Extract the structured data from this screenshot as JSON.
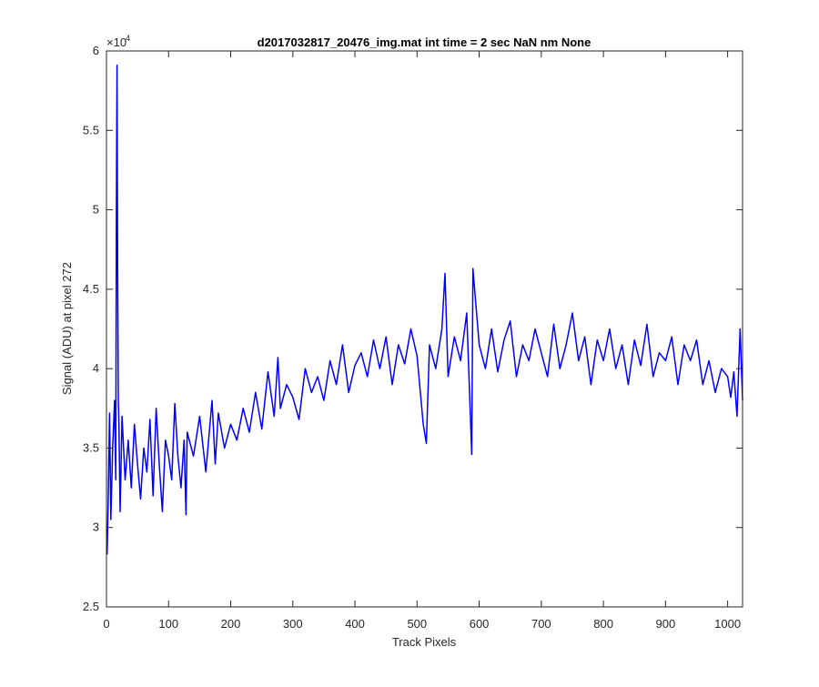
{
  "chart_data": {
    "type": "line",
    "title": "d2017032817_20476_img.mat int time = 2 sec  NaN nm None",
    "xlabel": "Track Pixels",
    "ylabel": "Signal (ADU) at pixel 272",
    "xlim": [
      0,
      1024
    ],
    "ylim": [
      25000,
      60000
    ],
    "xticks": [
      0,
      100,
      200,
      300,
      400,
      500,
      600,
      700,
      800,
      900,
      1000
    ],
    "xtick_labels": [
      "0",
      "100",
      "200",
      "300",
      "400",
      "500",
      "600",
      "700",
      "800",
      "900",
      "1000"
    ],
    "yticks": [
      25000,
      30000,
      35000,
      40000,
      45000,
      50000,
      55000,
      60000
    ],
    "ytick_labels": [
      "2.5",
      "3",
      "3.5",
      "4",
      "4.5",
      "5",
      "5.5",
      "6"
    ],
    "y_exponent": {
      "base": "×10",
      "power": "4"
    },
    "grid": false,
    "series_color": "#0000ff",
    "series": [
      {
        "x": [
          1,
          3,
          5,
          7,
          10,
          13,
          15,
          16,
          17,
          18,
          19,
          20,
          22,
          25,
          30,
          35,
          40,
          45,
          50,
          55,
          60,
          65,
          70,
          75,
          80,
          85,
          90,
          95,
          100,
          105,
          110,
          115,
          120,
          125,
          128,
          130,
          140,
          150,
          160,
          170,
          175,
          180,
          190,
          200,
          210,
          220,
          230,
          240,
          250,
          260,
          270,
          276,
          280,
          290,
          300,
          310,
          320,
          330,
          340,
          350,
          360,
          370,
          380,
          390,
          400,
          410,
          420,
          430,
          440,
          450,
          460,
          470,
          480,
          490,
          500,
          510,
          515,
          520,
          530,
          540,
          545,
          550,
          560,
          570,
          580,
          585,
          588,
          590,
          600,
          610,
          620,
          630,
          640,
          650,
          660,
          670,
          680,
          690,
          700,
          710,
          720,
          730,
          740,
          750,
          760,
          770,
          780,
          790,
          800,
          810,
          820,
          830,
          840,
          850,
          860,
          870,
          880,
          890,
          900,
          910,
          920,
          930,
          940,
          950,
          960,
          970,
          980,
          990,
          1000,
          1005,
          1010,
          1015,
          1020,
          1024
        ],
        "y": [
          28300,
          32000,
          37200,
          30500,
          35000,
          38000,
          33000,
          50000,
          59100,
          46000,
          38000,
          36500,
          31000,
          37000,
          33000,
          35500,
          32500,
          36500,
          34000,
          31800,
          35000,
          33500,
          36800,
          32000,
          37500,
          34000,
          31000,
          35500,
          34500,
          33000,
          37800,
          34500,
          32500,
          35500,
          30800,
          36000,
          34500,
          37000,
          33500,
          38000,
          34000,
          37200,
          35000,
          36500,
          35500,
          37500,
          36000,
          38500,
          36200,
          39800,
          37000,
          40700,
          37500,
          39000,
          38200,
          36800,
          40000,
          38500,
          39500,
          38000,
          40500,
          39000,
          41500,
          38500,
          40200,
          41000,
          39500,
          41800,
          40000,
          42000,
          39000,
          41500,
          40300,
          42500,
          40800,
          36500,
          35300,
          41500,
          40000,
          42500,
          46000,
          39500,
          42000,
          40500,
          43500,
          38000,
          34600,
          46300,
          41500,
          40000,
          42500,
          39800,
          41800,
          43000,
          39500,
          41500,
          40500,
          42500,
          41000,
          39500,
          42800,
          40000,
          41500,
          43500,
          40500,
          42000,
          39000,
          41800,
          40500,
          42500,
          40000,
          41500,
          39000,
          41800,
          40200,
          42800,
          39500,
          41000,
          40500,
          42000,
          39000,
          41500,
          40500,
          41800,
          39000,
          40500,
          38500,
          40000,
          39500,
          38200,
          39800,
          37000,
          42500,
          38000
        ]
      }
    ]
  }
}
